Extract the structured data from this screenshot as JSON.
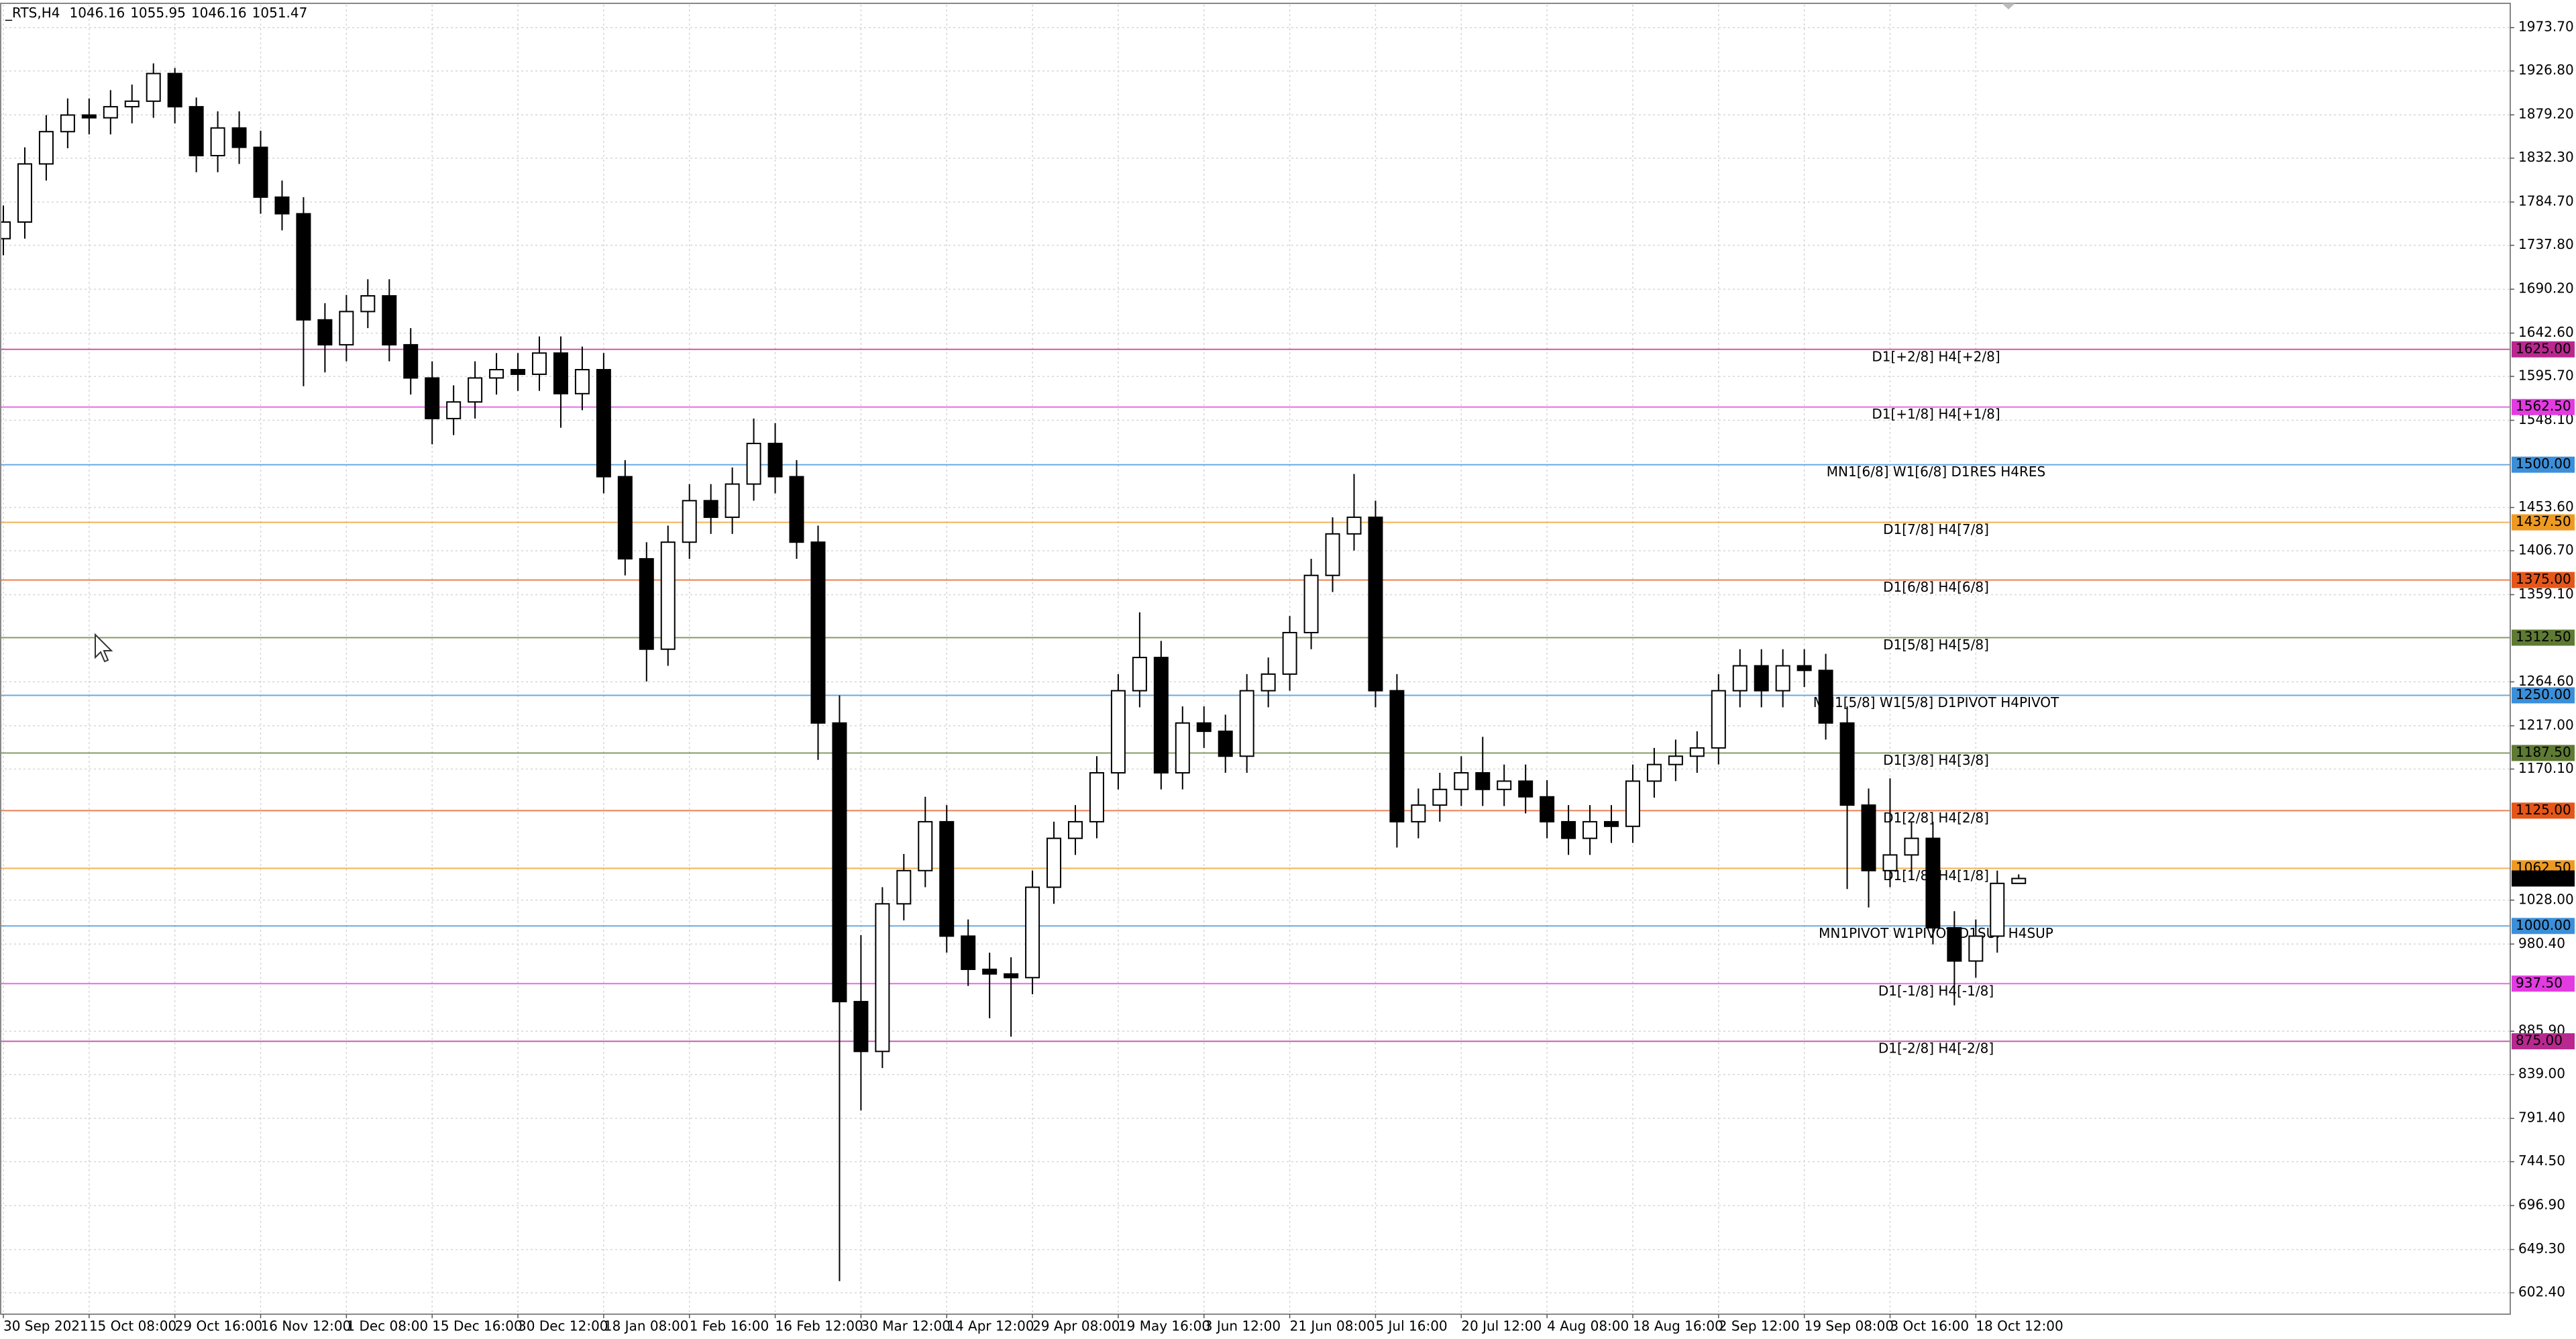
{
  "chart_data": {
    "type": "candlestick",
    "header": {
      "symbol": "_RTS,H4"
    },
    "categories": [
      "30 Sep 2021",
      null,
      null,
      null,
      "15 Oct 08:00",
      null,
      null,
      null,
      "29 Oct 16:00",
      null,
      null,
      null,
      "16 Nov 12:00",
      null,
      null,
      null,
      "1 Dec 08:00",
      null,
      null,
      null,
      "15 Dec 16:00",
      null,
      null,
      null,
      "30 Dec 12:00",
      null,
      null,
      null,
      "18 Jan 08:00",
      null,
      null,
      null,
      "1 Feb 16:00",
      null,
      null,
      null,
      "16 Feb 12:00",
      null,
      null,
      null,
      "30 Mar 12:00",
      null,
      null,
      null,
      "14 Apr 12:00",
      null,
      null,
      null,
      "29 Apr 08:00",
      null,
      null,
      null,
      "19 May 16:00",
      null,
      null,
      null,
      "3 Jun 12:00",
      null,
      null,
      null,
      "21 Jun 08:00",
      null,
      null,
      null,
      "5 Jul 16:00",
      null,
      null,
      null,
      "20 Jul 12:00",
      null,
      null,
      null,
      "4 Aug 08:00",
      null,
      null,
      null,
      "18 Aug 16:00",
      null,
      null,
      null,
      "2 Sep 12:00",
      null,
      null,
      null,
      "19 Sep 08:00",
      null,
      null,
      null,
      "3 Oct 16:00",
      null,
      null,
      null,
      "18 Oct 12:00",
      null,
      null
    ],
    "open": [
      1745,
      1763,
      1826,
      1861,
      1879,
      1876,
      1888,
      1894,
      1924,
      1888,
      1835,
      1865,
      1844,
      1790,
      1772,
      1657,
      1630,
      1666,
      1683,
      1630,
      1594,
      1550,
      1568,
      1594,
      1603,
      1598,
      1621,
      1577,
      1603,
      1487,
      1398,
      1300,
      1416,
      1461,
      1443,
      1479,
      1523,
      1487,
      1416,
      1220,
      918,
      864,
      1024,
      1060,
      1113,
      989,
      953,
      948,
      944,
      1042,
      1095,
      1113,
      1166,
      1255,
      1291,
      1166,
      1220,
      1211,
      1184,
      1255,
      1273,
      1318,
      1380,
      1425,
      1443,
      1255,
      1113,
      1131,
      1148,
      1166,
      1148,
      1157,
      1140,
      1113,
      1095,
      1113,
      1108,
      1157,
      1175,
      1184,
      1193,
      1255,
      1282,
      1255,
      1282,
      1277,
      1220,
      1131,
      1060,
      1077,
      1095,
      998,
      962,
      989,
      1046.16
    ],
    "high": [
      1781,
      1844,
      1879,
      1897,
      1897,
      1906,
      1912,
      1935,
      1930,
      1898,
      1883,
      1883,
      1862,
      1808,
      1790,
      1675,
      1684,
      1701,
      1701,
      1648,
      1612,
      1586,
      1612,
      1621,
      1621,
      1639,
      1639,
      1628,
      1621,
      1505,
      1416,
      1434,
      1479,
      1479,
      1497,
      1550,
      1545,
      1505,
      1434,
      1250,
      990,
      1042,
      1078,
      1140,
      1131,
      1007,
      971,
      966,
      1060,
      1113,
      1131,
      1184,
      1273,
      1340,
      1309,
      1238,
      1238,
      1229,
      1273,
      1291,
      1336,
      1398,
      1443,
      1490,
      1461,
      1273,
      1149,
      1166,
      1184,
      1205,
      1175,
      1175,
      1158,
      1131,
      1131,
      1131,
      1175,
      1193,
      1202,
      1211,
      1273,
      1300,
      1300,
      1300,
      1300,
      1295,
      1238,
      1149,
      1160,
      1113,
      1113,
      1016,
      1007,
      1060,
      1055.95
    ],
    "low": [
      1727,
      1745,
      1808,
      1843,
      1858,
      1858,
      1870,
      1876,
      1870,
      1817,
      1817,
      1826,
      1772,
      1754,
      1585,
      1600,
      1612,
      1648,
      1612,
      1576,
      1522,
      1532,
      1550,
      1576,
      1580,
      1580,
      1540,
      1559,
      1469,
      1380,
      1265,
      1282,
      1398,
      1425,
      1425,
      1461,
      1469,
      1398,
      1180,
      615,
      800,
      846,
      1006,
      1042,
      971,
      935,
      900,
      880,
      926,
      1024,
      1077,
      1095,
      1148,
      1237,
      1148,
      1148,
      1193,
      1166,
      1166,
      1237,
      1255,
      1300,
      1362,
      1407,
      1237,
      1085,
      1095,
      1113,
      1130,
      1130,
      1130,
      1122,
      1095,
      1077,
      1077,
      1090,
      1090,
      1139,
      1157,
      1166,
      1175,
      1237,
      1237,
      1237,
      1259,
      1202,
      1040,
      1020,
      1042,
      1050,
      980,
      914,
      944,
      971,
      1046.16
    ],
    "close": [
      1763,
      1826,
      1861,
      1879,
      1876,
      1888,
      1894,
      1924,
      1888,
      1835,
      1865,
      1844,
      1790,
      1772,
      1657,
      1630,
      1666,
      1683,
      1630,
      1594,
      1550,
      1568,
      1594,
      1603,
      1598,
      1621,
      1577,
      1603,
      1487,
      1398,
      1300,
      1416,
      1461,
      1443,
      1479,
      1523,
      1487,
      1416,
      1220,
      918,
      864,
      1024,
      1060,
      1113,
      989,
      953,
      948,
      944,
      1042,
      1095,
      1113,
      1166,
      1255,
      1291,
      1166,
      1220,
      1211,
      1184,
      1255,
      1273,
      1318,
      1380,
      1425,
      1443,
      1255,
      1113,
      1131,
      1148,
      1166,
      1148,
      1157,
      1140,
      1113,
      1095,
      1113,
      1108,
      1157,
      1175,
      1184,
      1193,
      1255,
      1282,
      1255,
      1282,
      1277,
      1220,
      1131,
      1060,
      1077,
      1095,
      998,
      962,
      989,
      1046.16,
      1051.47
    ],
    "ylim": [
      579.2,
      1998.6
    ],
    "yticks": [
      {
        "value": 1973.7,
        "label": "1973.70"
      },
      {
        "value": 1926.8,
        "label": "1926.80"
      },
      {
        "value": 1879.2,
        "label": "1879.20"
      },
      {
        "value": 1832.3,
        "label": "1832.30"
      },
      {
        "value": 1784.7,
        "label": "1784.70"
      },
      {
        "value": 1737.8,
        "label": "1737.80"
      },
      {
        "value": 1690.2,
        "label": "1690.20"
      },
      {
        "value": 1642.6,
        "label": "1642.60"
      },
      {
        "value": 1595.7,
        "label": "1595.70"
      },
      {
        "value": 1548.1,
        "label": "1548.10"
      },
      {
        "value": 1453.6,
        "label": "1453.60"
      },
      {
        "value": 1406.7,
        "label": "1406.70"
      },
      {
        "value": 1359.1,
        "label": "1359.10"
      },
      {
        "value": 1264.6,
        "label": "1264.60"
      },
      {
        "value": 1217,
        "label": "1217.00"
      },
      {
        "value": 1170.1,
        "label": "1170.10"
      },
      {
        "value": 1028,
        "label": "1028.00"
      },
      {
        "value": 980.4,
        "label": "980.40"
      },
      {
        "value": 885.9,
        "label": "885.90"
      },
      {
        "value": 839,
        "label": "839.00"
      },
      {
        "value": 791.4,
        "label": "791.40"
      },
      {
        "value": 744.5,
        "label": "744.50"
      },
      {
        "value": 696.9,
        "label": "696.90"
      },
      {
        "value": 649.3,
        "label": "649.30"
      },
      {
        "value": 602.4,
        "label": "602.40"
      }
    ],
    "grid": true,
    "levels": [
      {
        "value": 1625,
        "price_label": "1625.00",
        "label": "D1[+2/8] H4[+2/8]",
        "color": "#b8288f"
      },
      {
        "value": 1562.5,
        "price_label": "1562.50",
        "label": "D1[+1/8] H4[+1/8]",
        "color": "#e23be0"
      },
      {
        "value": 1500,
        "price_label": "1500.00",
        "label": "MN1[6/8] W1[6/8] D1RES H4RES",
        "color": "#3b8fd9"
      },
      {
        "value": 1437.5,
        "price_label": "1437.50",
        "label": "D1[7/8] H4[7/8]",
        "color": "#ee9a22"
      },
      {
        "value": 1375,
        "price_label": "1375.00",
        "label": "D1[6/8] H4[6/8]",
        "color": "#e5561a"
      },
      {
        "value": 1312.5,
        "price_label": "1312.50",
        "label": "D1[5/8] H4[5/8]",
        "color": "#5e7a33"
      },
      {
        "value": 1250,
        "price_label": "1250.00",
        "label": "MN1[5/8] W1[5/8] D1PIVOT H4PIVOT",
        "color": "#3b8fd9"
      },
      {
        "value": 1187.5,
        "price_label": "1187.50",
        "label": "D1[3/8] H4[3/8]",
        "color": "#5e7a33"
      },
      {
        "value": 1125,
        "price_label": "1125.00",
        "label": "D1[2/8] H4[2/8]",
        "color": "#e5561a"
      },
      {
        "value": 1062.5,
        "price_label": "1062.50",
        "label": "D1[1/8] H4[1/8]",
        "color": "#ee9a22"
      },
      {
        "value": 1000,
        "price_label": "1000.00",
        "label": "MN1PIVOT W1PIVOT D1SUP H4SUP",
        "color": "#3b8fd9"
      },
      {
        "value": 937.5,
        "price_label": "937.50",
        "label": "D1[-1/8] H4[-1/8]",
        "color": "#e23be0"
      },
      {
        "value": 875,
        "price_label": "875.00",
        "label": "D1[-2/8] H4[-2/8]",
        "color": "#b8288f"
      }
    ],
    "bull_color": "#ffffff",
    "bear_color": "#000000"
  }
}
